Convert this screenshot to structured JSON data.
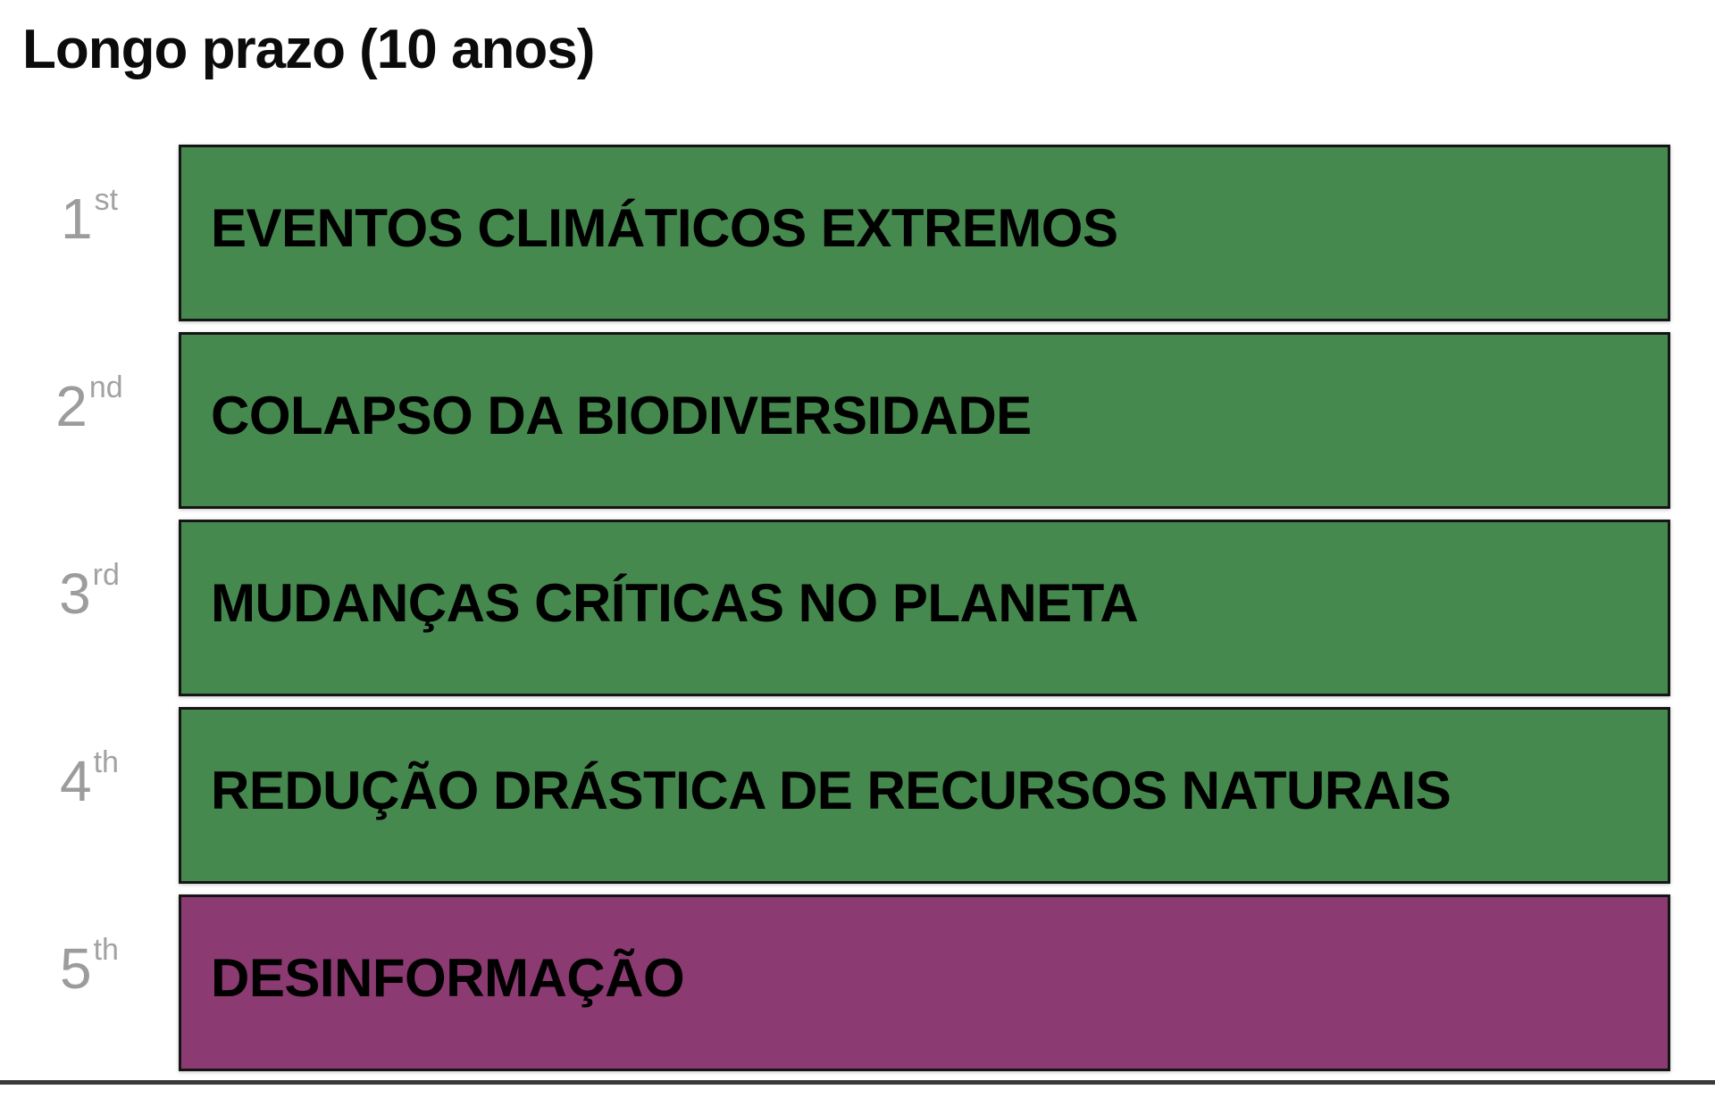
{
  "title": "Longo prazo (10 anos)",
  "colors": {
    "environmental_green": "#45894F",
    "societal_purple": "#8C3A72",
    "ordinal_gray": "#9C9C9C",
    "bar_border": "#151515",
    "baseline_rule": "#3A3A3A",
    "background": "#FFFFFF",
    "label_text": "#000000"
  },
  "chart_data": {
    "type": "bar",
    "orientation": "horizontal",
    "title": "Longo prazo (10 anos)",
    "subtitle": "",
    "grid": false,
    "legend_position": "none",
    "note": "Ranked list chart; all five bars span equal full length, color encodes risk category",
    "categories": [
      "1st",
      "2nd",
      "3rd",
      "4th",
      "5th"
    ],
    "items": [
      {
        "rank": 1,
        "ordinal": "1",
        "ordinal_suffix": "st",
        "label": "EVENTOS CLIMÁTICOS EXTREMOS",
        "color": "#45894F",
        "color_class": "green"
      },
      {
        "rank": 2,
        "ordinal": "2",
        "ordinal_suffix": "nd",
        "label": "COLAPSO DA BIODIVERSIDADE",
        "color": "#45894F",
        "color_class": "green"
      },
      {
        "rank": 3,
        "ordinal": "3",
        "ordinal_suffix": "rd",
        "label": "MUDANÇAS CRÍTICAS NO PLANETA",
        "color": "#45894F",
        "color_class": "green"
      },
      {
        "rank": 4,
        "ordinal": "4",
        "ordinal_suffix": "th",
        "label": "REDUÇÃO DRÁSTICA DE RECURSOS NATURAIS",
        "color": "#45894F",
        "color_class": "green"
      },
      {
        "rank": 5,
        "ordinal": "5",
        "ordinal_suffix": "th",
        "label": "DESINFORMAÇÃO",
        "color": "#8C3A72",
        "color_class": "purple"
      }
    ]
  }
}
